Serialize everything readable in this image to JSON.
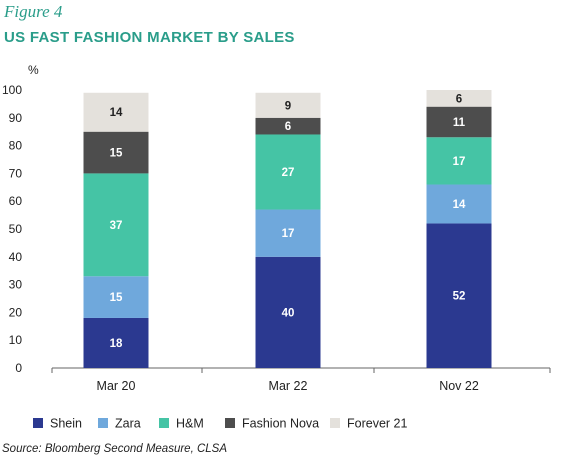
{
  "figure_label": "Figure 4",
  "source": "Source: Bloomberg Second Measure, CLSA",
  "chart_data": {
    "type": "bar",
    "stacked": true,
    "title": "US FAST FASHION MARKET BY SALES",
    "ylabel": "%",
    "xlabel": "",
    "ylim": [
      0,
      100
    ],
    "yticks": [
      0,
      10,
      20,
      30,
      40,
      50,
      60,
      70,
      80,
      90,
      100
    ],
    "grid": false,
    "legend_position": "bottom",
    "categories": [
      "Mar 20",
      "Mar 22",
      "Nov 22"
    ],
    "series": [
      {
        "name": "Shein",
        "values": [
          18,
          40,
          52
        ],
        "color": "#2b3990",
        "label_color": "#ffffff"
      },
      {
        "name": "Zara",
        "values": [
          15,
          17,
          14
        ],
        "color": "#6fa8dc",
        "label_color": "#ffffff"
      },
      {
        "name": "H&M",
        "values": [
          37,
          27,
          17
        ],
        "color": "#45c4a5",
        "label_color": "#ffffff"
      },
      {
        "name": "Fashion Nova",
        "values": [
          15,
          6,
          11
        ],
        "color": "#4d4d4d",
        "label_color": "#ffffff"
      },
      {
        "name": "Forever 21",
        "values": [
          14,
          9,
          6
        ],
        "color": "#e4e1dc",
        "label_color": "#222222"
      }
    ]
  }
}
